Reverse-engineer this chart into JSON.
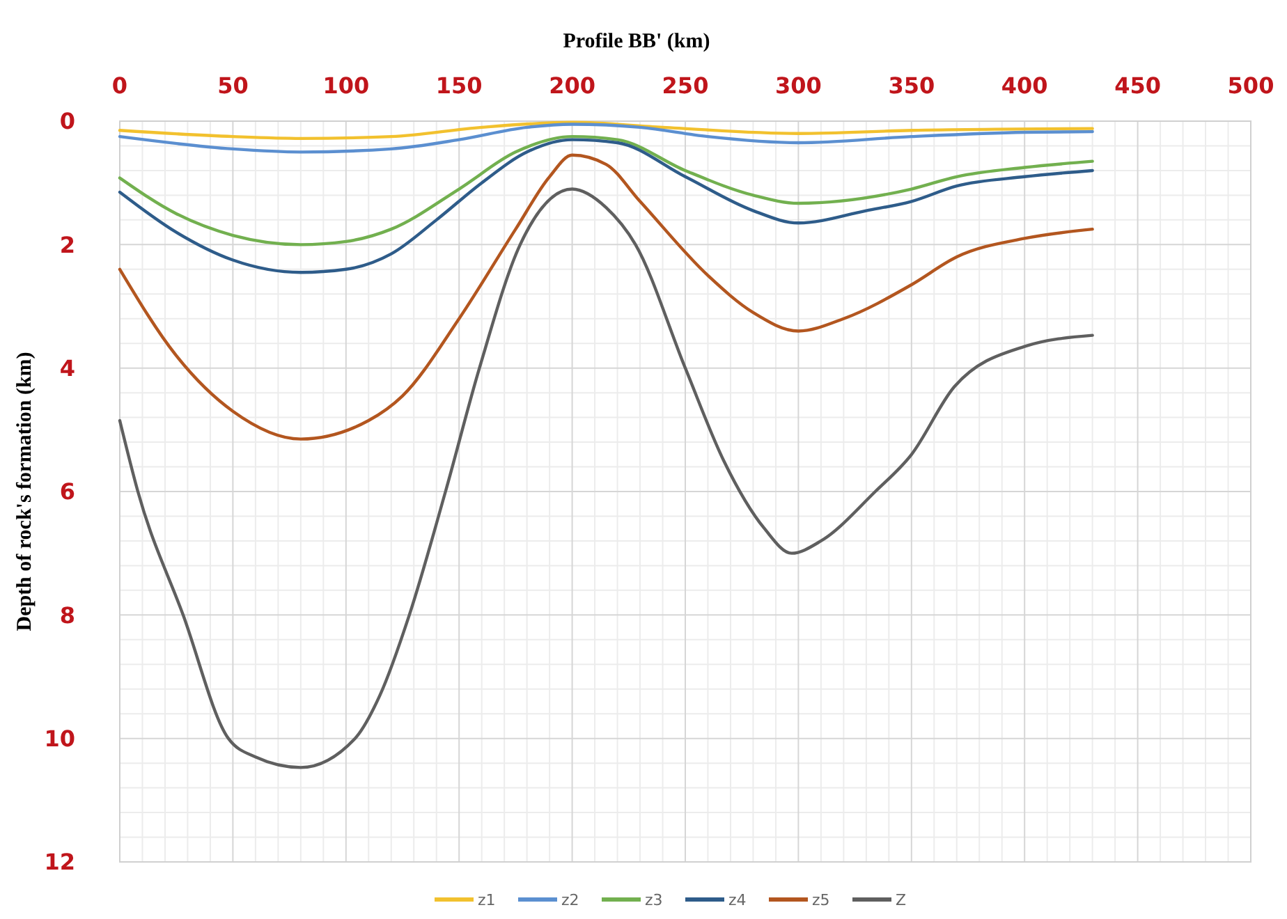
{
  "chart_data": {
    "type": "line",
    "xlabel": "Profile BB' (km)",
    "ylabel": "Depth of rock's formation (km)",
    "xlim": [
      0,
      500
    ],
    "xticks": [
      0,
      50,
      100,
      150,
      200,
      250,
      300,
      350,
      400,
      450,
      500
    ],
    "ylim": [
      12,
      0
    ],
    "yticks": [
      0,
      2,
      4,
      6,
      8,
      10,
      12
    ],
    "grid": true,
    "legend": "bottom",
    "marker": "none",
    "line_style": "solid",
    "series": [
      {
        "name": "z1",
        "color": "#f2c12e",
        "x": [
          0,
          50,
          80,
          120,
          160,
          200,
          240,
          300,
          350,
          430
        ],
        "values": [
          0.15,
          0.25,
          0.28,
          0.25,
          0.1,
          0.02,
          0.1,
          0.2,
          0.15,
          0.12
        ]
      },
      {
        "name": "z2",
        "color": "#5b8fd0",
        "x": [
          0,
          50,
          80,
          120,
          150,
          180,
          200,
          230,
          260,
          300,
          350,
          400,
          430
        ],
        "values": [
          0.25,
          0.45,
          0.5,
          0.45,
          0.3,
          0.1,
          0.05,
          0.1,
          0.25,
          0.35,
          0.25,
          0.18,
          0.17
        ]
      },
      {
        "name": "z3",
        "color": "#72b04f",
        "x": [
          0,
          25,
          50,
          80,
          100,
          120,
          150,
          175,
          200,
          220,
          250,
          280,
          300,
          350,
          370,
          400,
          430
        ],
        "values": [
          0.92,
          1.5,
          1.85,
          2.0,
          1.95,
          1.75,
          1.1,
          0.5,
          0.25,
          0.3,
          0.8,
          1.2,
          1.33,
          1.1,
          0.9,
          0.75,
          0.65
        ]
      },
      {
        "name": "z4",
        "color": "#2e5c8a",
        "x": [
          0,
          25,
          50,
          80,
          100,
          120,
          140,
          160,
          180,
          200,
          220,
          250,
          280,
          300,
          330,
          350,
          370,
          400,
          430
        ],
        "values": [
          1.15,
          1.8,
          2.25,
          2.45,
          2.4,
          2.15,
          1.6,
          1.0,
          0.5,
          0.3,
          0.35,
          0.9,
          1.45,
          1.65,
          1.45,
          1.3,
          1.05,
          0.9,
          0.8
        ]
      },
      {
        "name": "z5",
        "color": "#b3561f",
        "x": [
          0,
          25,
          50,
          80,
          110,
          125,
          150,
          175,
          190,
          200,
          215,
          230,
          260,
          280,
          300,
          320,
          350,
          370,
          400,
          430
        ],
        "values": [
          2.4,
          3.8,
          4.7,
          5.15,
          4.85,
          4.45,
          3.2,
          1.75,
          0.9,
          0.55,
          0.7,
          1.3,
          2.5,
          3.1,
          3.4,
          3.2,
          2.65,
          2.2,
          1.9,
          1.75
        ]
      },
      {
        "name": "Z",
        "color": "#5f5f5f",
        "x": [
          0,
          8,
          28,
          48,
          60,
          80,
          104,
          115,
          128,
          144,
          159,
          177,
          200,
          215,
          228,
          250,
          267,
          285,
          297,
          310,
          334,
          350,
          369,
          400,
          430
        ],
        "values": [
          4.85,
          6.0,
          8.0,
          10.0,
          10.3,
          10.47,
          10.0,
          9.3,
          8.0,
          6.0,
          4.0,
          2.0,
          1.1,
          1.4,
          2.0,
          4.0,
          5.5,
          6.6,
          7.0,
          6.8,
          6.0,
          5.4,
          4.3,
          3.65,
          3.47
        ]
      }
    ]
  }
}
